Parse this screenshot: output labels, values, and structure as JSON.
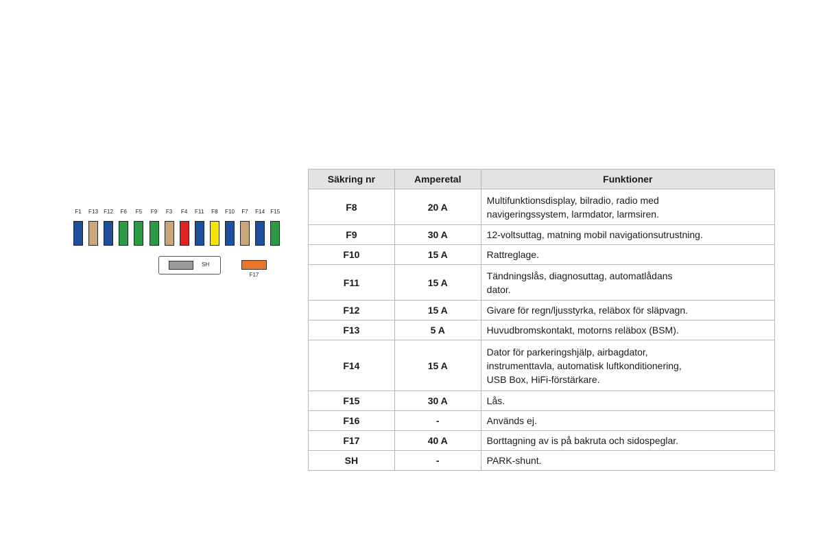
{
  "diagram": {
    "fuses": [
      {
        "label": "F1",
        "color": "#1f4f9a"
      },
      {
        "label": "F13",
        "color": "#c9a77c"
      },
      {
        "label": "F12",
        "color": "#1f4f9a"
      },
      {
        "label": "F6",
        "color": "#2a9a45"
      },
      {
        "label": "F5",
        "color": "#2a9a45"
      },
      {
        "label": "F9",
        "color": "#2a9a45"
      },
      {
        "label": "F3",
        "color": "#c9a77c"
      },
      {
        "label": "F4",
        "color": "#e02424"
      },
      {
        "label": "F11",
        "color": "#1f4f9a"
      },
      {
        "label": "F8",
        "color": "#f2e600"
      },
      {
        "label": "F10",
        "color": "#1f4f9a"
      },
      {
        "label": "F7",
        "color": "#c9a77c"
      },
      {
        "label": "F14",
        "color": "#1f4f9a"
      },
      {
        "label": "F15",
        "color": "#2a9a45"
      }
    ],
    "shunt_label": "SH",
    "shunt_color": "#9a9a9a",
    "f17_label": "F17",
    "f17_color": "#e8762c"
  },
  "table": {
    "headers": {
      "nr": "Säkring nr",
      "amp": "Amperetal",
      "fn": "Funktioner"
    },
    "rows": [
      {
        "nr": "F8",
        "amp": "20 A",
        "fn": "Multifunktionsdisplay, bilradio, radio med\nnavigeringssystem, larmdator, larmsiren."
      },
      {
        "nr": "F9",
        "amp": "30 A",
        "fn": "12-voltsuttag, matning mobil navigationsutrustning."
      },
      {
        "nr": "F10",
        "amp": "15 A",
        "fn": "Rattreglage."
      },
      {
        "nr": "F11",
        "amp": "15 A",
        "fn": "Tändningslås, diagnosuttag, automatlådans\ndator."
      },
      {
        "nr": "F12",
        "amp": "15 A",
        "fn": "Givare för regn/ljusstyrka, reläbox för släpvagn."
      },
      {
        "nr": "F13",
        "amp": "5 A",
        "fn": "Huvudbromskontakt, motorns reläbox (BSM)."
      },
      {
        "nr": "F14",
        "amp": "15 A",
        "fn": "Dator för parkeringshjälp, airbagdator,\ninstrumenttavla, automatisk luftkonditionering,\nUSB Box, HiFi-förstärkare."
      },
      {
        "nr": "F15",
        "amp": "30 A",
        "fn": "Lås."
      },
      {
        "nr": "F16",
        "amp": "-",
        "fn": "Används ej."
      },
      {
        "nr": "F17",
        "amp": "40 A",
        "fn": "Borttagning av is på bakruta och sidospeglar."
      },
      {
        "nr": "SH",
        "amp": "-",
        "fn": "PARK-shunt."
      }
    ]
  }
}
